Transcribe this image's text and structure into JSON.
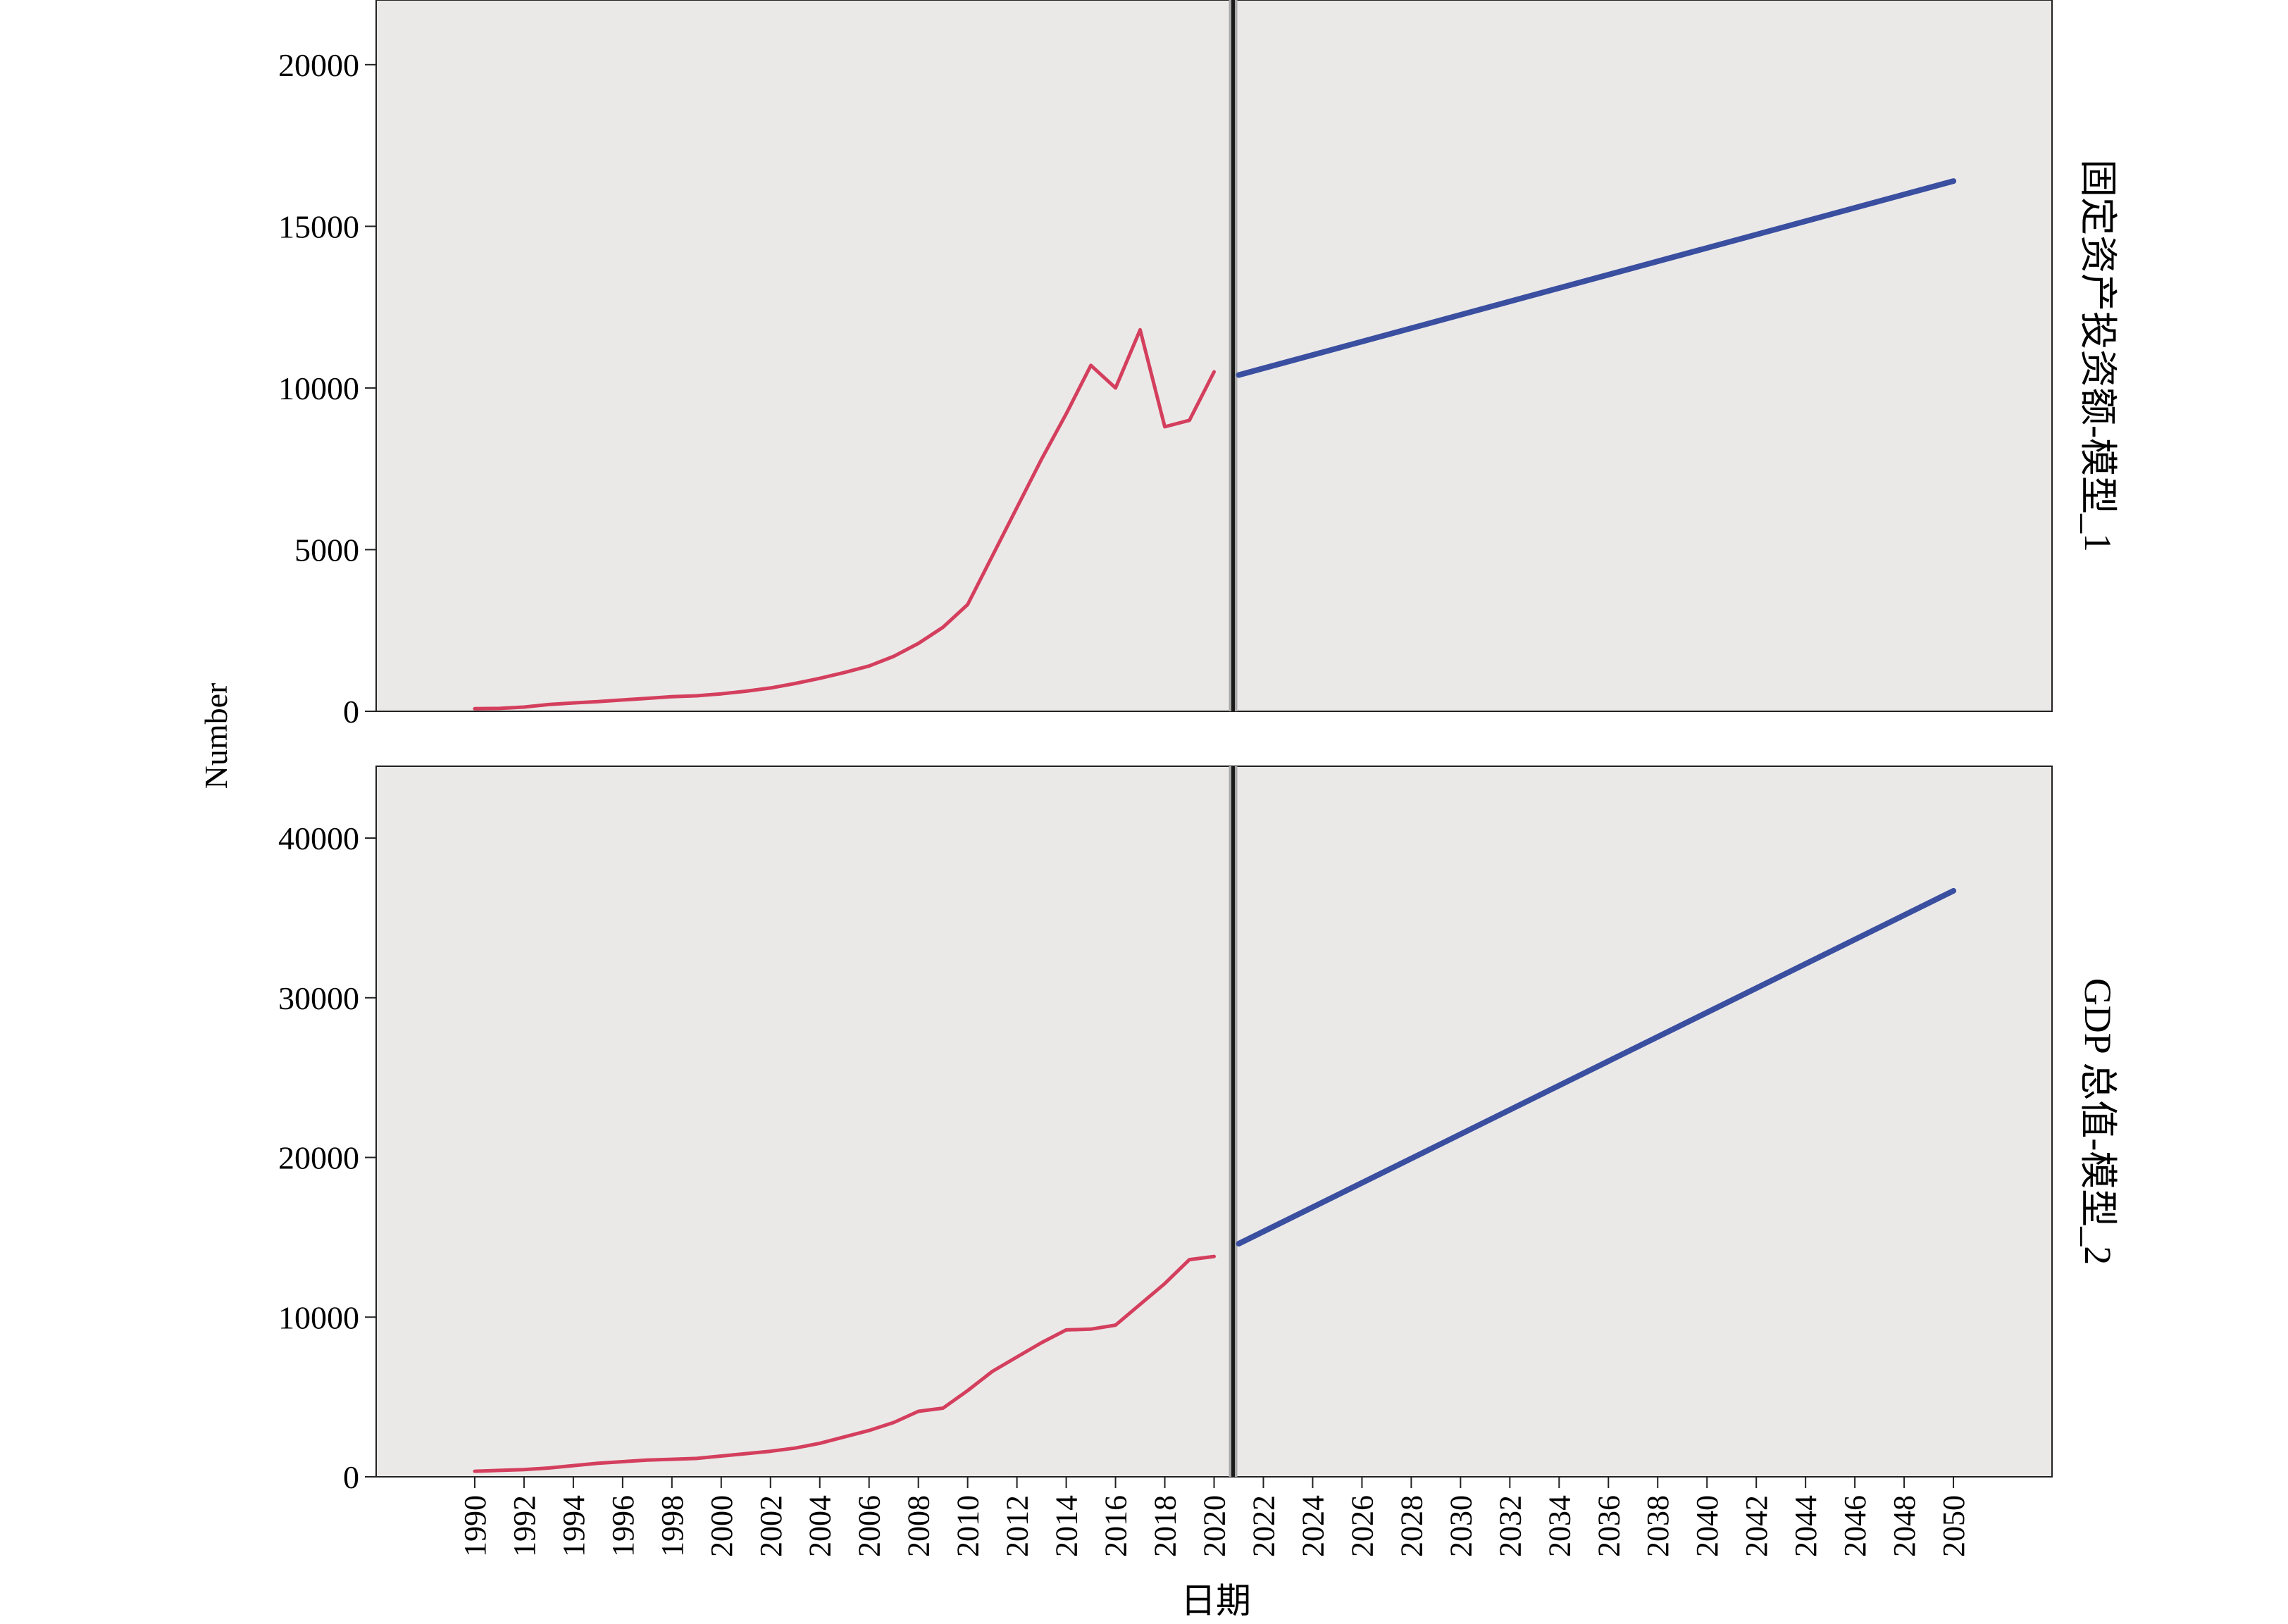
{
  "chart_data": {
    "type": "line",
    "ylabel": "Number",
    "xlabel": "日期",
    "x_ticks": [
      "1990",
      "1992",
      "1994",
      "1996",
      "1998",
      "2000",
      "2002",
      "2004",
      "2006",
      "2008",
      "2010",
      "2012",
      "2014",
      "2016",
      "2018",
      "2020",
      "2022",
      "2024",
      "2026",
      "2028",
      "2030",
      "2032",
      "2034",
      "2036",
      "2038",
      "2040",
      "2042",
      "2044",
      "2046",
      "2048",
      "2050"
    ],
    "forecast_start_year": 2021,
    "colors": {
      "observed": "#d43f5e",
      "forecast": "#3a4fa0",
      "panel_bg": "#ebe9e8",
      "divider": "#1a1a1a"
    },
    "panels": [
      {
        "strip_label": "固定资产投资额-模型_1",
        "ylim": [
          0,
          22000
        ],
        "y_ticks": [
          "0",
          "5000",
          "10000",
          "15000",
          "20000"
        ],
        "y_tick_values": [
          0,
          5000,
          10000,
          15000,
          20000
        ],
        "series": [
          {
            "role": "observed",
            "x": [
              1990,
              1991,
              1992,
              1993,
              1994,
              1995,
              1996,
              1997,
              1998,
              1999,
              2000,
              2001,
              2002,
              2003,
              2004,
              2005,
              2006,
              2007,
              2008,
              2009,
              2010,
              2011,
              2012,
              2013,
              2014,
              2015,
              2016,
              2017,
              2018,
              2019,
              2020
            ],
            "y": [
              80,
              90,
              130,
              210,
              260,
              300,
              350,
              400,
              450,
              480,
              540,
              620,
              720,
              860,
              1020,
              1200,
              1400,
              1700,
              2100,
              2600,
              3300,
              4800,
              6300,
              7800,
              9200,
              10700,
              10000,
              11800,
              8800,
              9000,
              10500
            ]
          },
          {
            "role": "forecast",
            "x": [
              2021,
              2050
            ],
            "y": [
              10400,
              16400
            ]
          }
        ]
      },
      {
        "strip_label": "GDP 总值-模型_2",
        "ylim": [
          0,
          44500
        ],
        "y_ticks": [
          "0",
          "10000",
          "20000",
          "30000",
          "40000"
        ],
        "y_tick_values": [
          0,
          10000,
          20000,
          30000,
          40000
        ],
        "series": [
          {
            "role": "observed",
            "x": [
              1990,
              1991,
              1992,
              1993,
              1994,
              1995,
              1996,
              1997,
              1998,
              1999,
              2000,
              2001,
              2002,
              2003,
              2004,
              2005,
              2006,
              2007,
              2008,
              2009,
              2010,
              2011,
              2012,
              2013,
              2014,
              2015,
              2016,
              2017,
              2018,
              2019,
              2020
            ],
            "y": [
              350,
              400,
              450,
              550,
              700,
              850,
              950,
              1050,
              1100,
              1150,
              1300,
              1450,
              1600,
              1800,
              2100,
              2500,
              2900,
              3400,
              4100,
              4300,
              5400,
              6600,
              7500,
              8400,
              9200,
              9250,
              9500,
              10800,
              12100,
              13600,
              13800
            ]
          },
          {
            "role": "forecast",
            "x": [
              2021,
              2050
            ],
            "y": [
              14600,
              36700
            ]
          }
        ]
      }
    ]
  }
}
